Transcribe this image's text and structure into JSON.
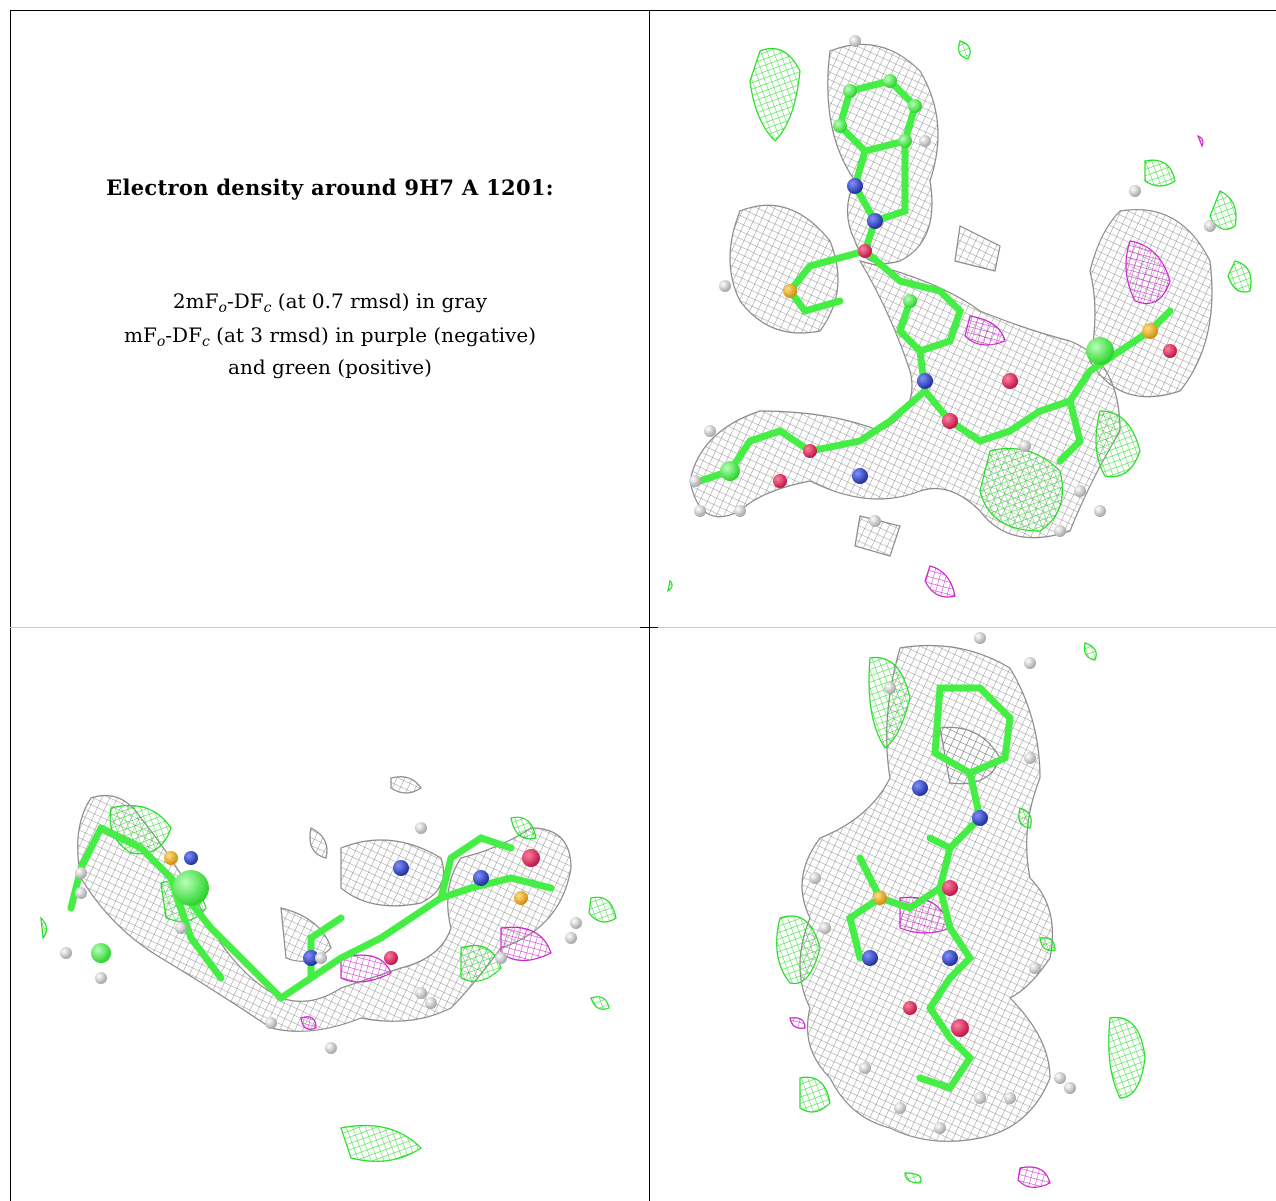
{
  "title": "Electron density around 9H7 A 1201:",
  "legend": {
    "line1": {
      "pre": "2mF",
      "sub1": "o",
      "mid": "-DF",
      "sub2": "c",
      "post": " (at 0.7 rmsd) in gray"
    },
    "line2": {
      "pre": "mF",
      "sub1": "o",
      "mid": "-DF",
      "sub2": "c",
      "post": " (at 3 rmsd) in purple (negative)"
    },
    "line3": "and green (positive)"
  },
  "colors": {
    "mesh_2fofc": "#8a8a8a",
    "mesh_positive": "#22dd22",
    "mesh_negative": "#cc22cc",
    "carbon": "#44ee44",
    "nitrogen": "#3344bb",
    "oxygen": "#e0285a",
    "sulfur": "#e8b020",
    "hydrogen": "#e8e8e8"
  },
  "panels": [
    {
      "view": "top-right",
      "description_icon": "molecule-density-view-1"
    },
    {
      "view": "bottom-left",
      "description_icon": "molecule-density-view-2"
    },
    {
      "view": "bottom-right",
      "description_icon": "molecule-density-view-3"
    }
  ]
}
